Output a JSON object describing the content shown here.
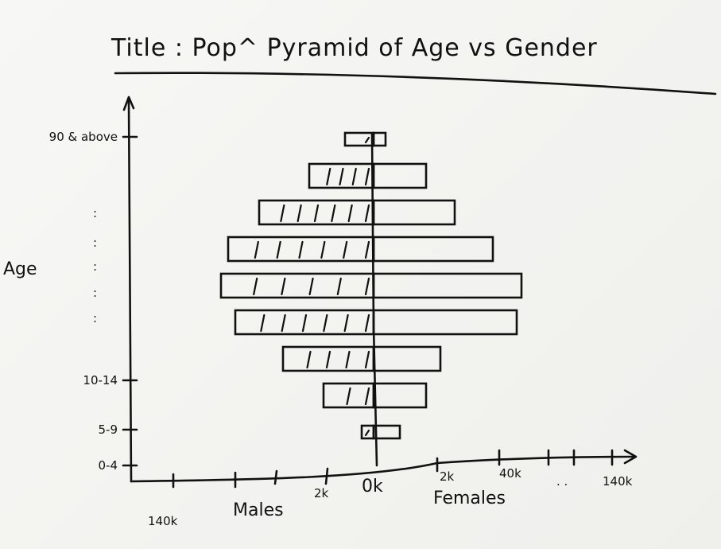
{
  "chart_data": {
    "type": "bar",
    "orientation": "horizontal",
    "title": "Title : Pop^ Pyramid of Age vs Gender",
    "ylabel": "Age",
    "xlabel_left": "Males",
    "xlabel_right": "Females",
    "y_tick_labels": [
      "0-4",
      "5-9",
      "10-14",
      ":",
      ":",
      ":",
      ":",
      ":",
      "90 & above"
    ],
    "x_tick_labels_left": [
      "140k",
      "2k"
    ],
    "x_tick_labels_center": "0k",
    "x_tick_labels_right": [
      "2k",
      "40k",
      "140k"
    ],
    "x_tick_dots": ". .",
    "series": [
      {
        "name": "Males",
        "values": [
          5,
          21,
          38,
          58,
          64,
          61,
          48,
          27,
          12
        ]
      },
      {
        "name": "Females",
        "values": [
          11,
          22,
          28,
          60,
          62,
          50,
          34,
          22,
          5
        ]
      }
    ],
    "hatch_counts_males": [
      1,
      2,
      4,
      6,
      5,
      6,
      6,
      4,
      1
    ],
    "grid": false,
    "legend": "none"
  }
}
